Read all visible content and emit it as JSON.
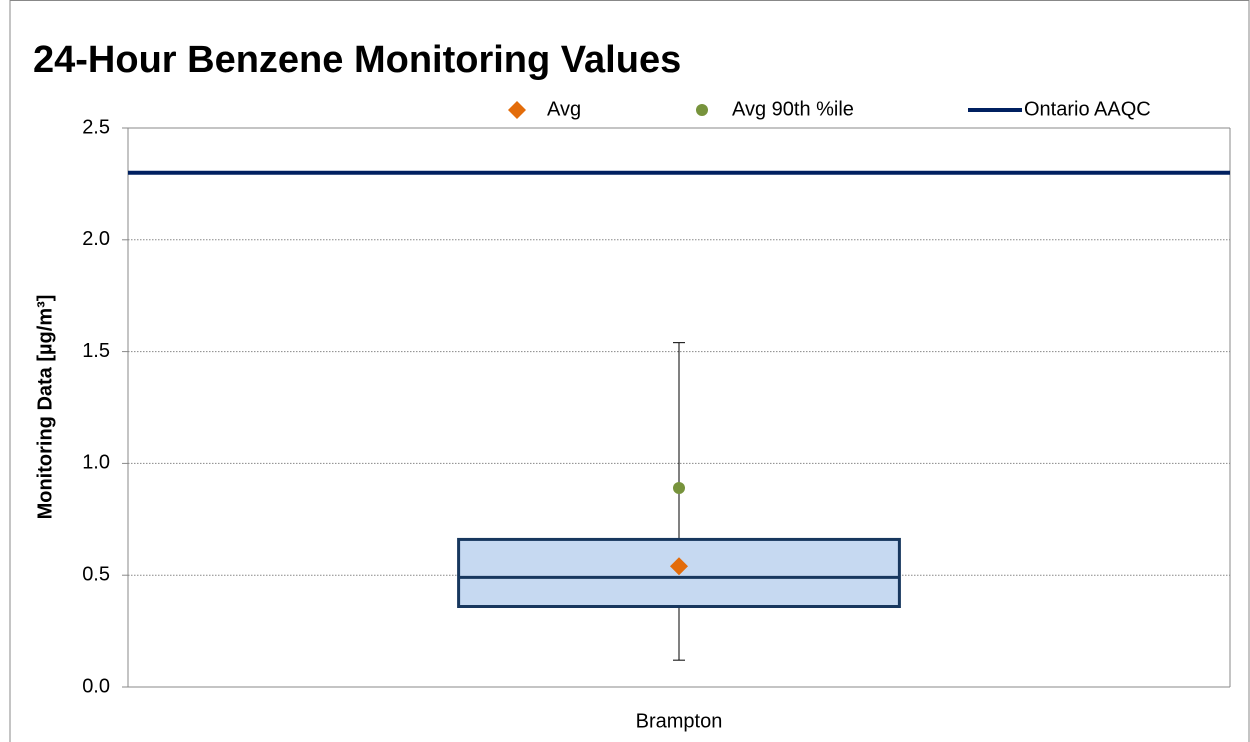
{
  "chart_data": {
    "type": "box",
    "title": "24-Hour Benzene Monitoring Values",
    "y_label": "Monitoring Data [µg/m³]",
    "categories": [
      "Brampton"
    ],
    "box": {
      "min": 0.12,
      "q1": 0.36,
      "median": 0.49,
      "q3": 0.66,
      "max": 1.54,
      "color": "#c6d9f1",
      "edge_color": "#17375e"
    },
    "series": [
      {
        "name": "Avg",
        "color": "#e36c0a",
        "values": [
          0.54
        ]
      },
      {
        "name": "Avg 90th %ile",
        "color": "#77933c",
        "values": [
          0.89
        ]
      }
    ],
    "reference_line": {
      "name": "Ontario AAQC",
      "value": 2.3,
      "color": "#002060"
    },
    "ylim": [
      0,
      2.5
    ],
    "yticks": [
      {
        "value": 0,
        "label": "0.0"
      },
      0.5,
      {
        "value": 1,
        "label": "1.0"
      },
      1.5,
      {
        "value": 2,
        "label": "2.0"
      },
      2.5
    ],
    "grid": true
  }
}
